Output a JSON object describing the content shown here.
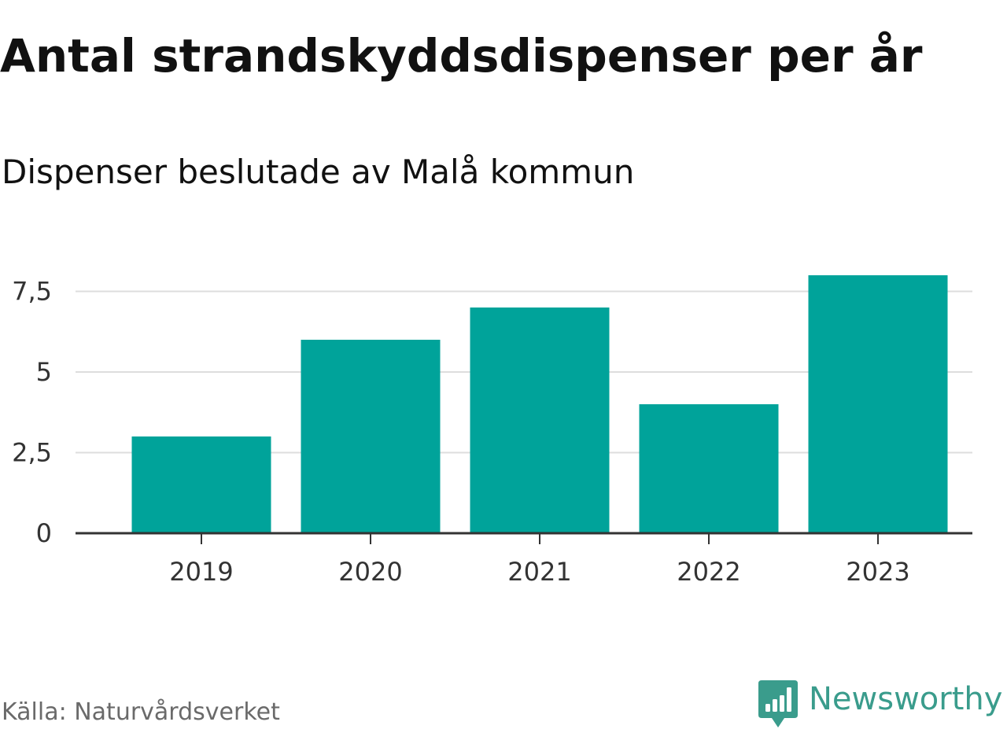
{
  "header": {
    "title": "Antal strandskyddsdispenser per år",
    "subtitle": "Dispenser beslutade av Malå kommun"
  },
  "footer": {
    "source": "Källa: Naturvårdsverket",
    "brand": "Newsworthy"
  },
  "colors": {
    "bar": "#00a39a",
    "brand": "#3a9c8c",
    "grid": "#dddddd",
    "axis": "#333333"
  },
  "chart_data": {
    "type": "bar",
    "title": "Antal strandskyddsdispenser per år",
    "subtitle": "Dispenser beslutade av Malå kommun",
    "xlabel": "",
    "ylabel": "",
    "categories": [
      "2019",
      "2020",
      "2021",
      "2022",
      "2023"
    ],
    "values": [
      3,
      6,
      7,
      4,
      8
    ],
    "ylim": [
      0,
      8
    ],
    "yticks": [
      0,
      2.5,
      5,
      7.5
    ],
    "ytick_labels": [
      "0",
      "2,5",
      "5",
      "7,5"
    ],
    "grid": true,
    "legend": "none"
  }
}
